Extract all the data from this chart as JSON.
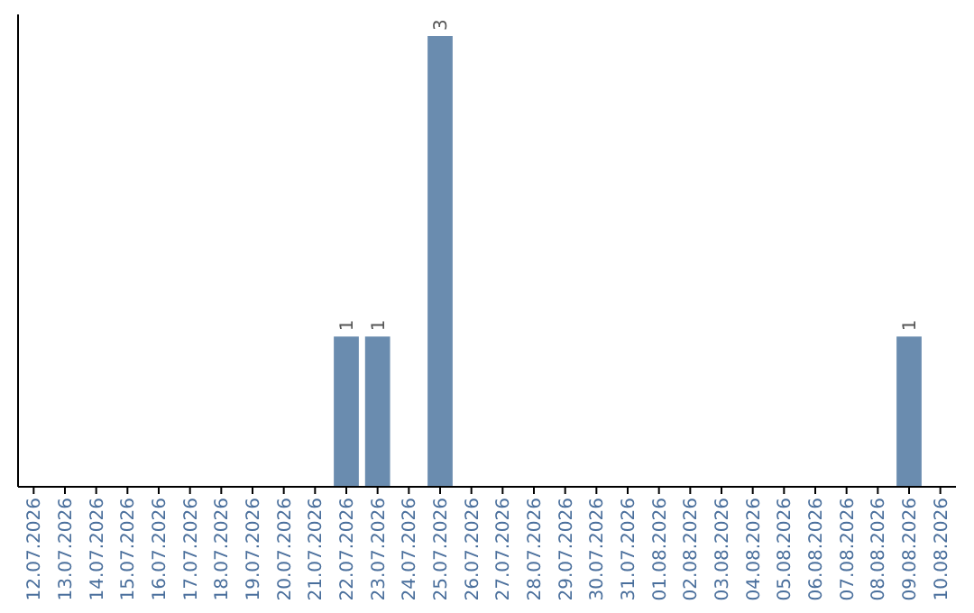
{
  "chart_data": {
    "type": "bar",
    "categories": [
      "12.07.2026",
      "13.07.2026",
      "14.07.2026",
      "15.07.2026",
      "16.07.2026",
      "17.07.2026",
      "18.07.2026",
      "19.07.2026",
      "20.07.2026",
      "21.07.2026",
      "22.07.2026",
      "23.07.2026",
      "24.07.2026",
      "25.07.2026",
      "26.07.2026",
      "27.07.2026",
      "28.07.2026",
      "29.07.2026",
      "30.07.2026",
      "31.07.2026",
      "01.08.2026",
      "02.08.2026",
      "03.08.2026",
      "04.08.2026",
      "05.08.2026",
      "06.08.2026",
      "07.08.2026",
      "08.08.2026",
      "09.08.2026",
      "10.08.2026"
    ],
    "values": [
      0,
      0,
      0,
      0,
      0,
      0,
      0,
      0,
      0,
      0,
      1,
      1,
      0,
      3,
      0,
      0,
      0,
      0,
      0,
      0,
      0,
      0,
      0,
      0,
      0,
      0,
      0,
      0,
      1,
      0
    ],
    "value_labels": [
      null,
      null,
      null,
      null,
      null,
      null,
      null,
      null,
      null,
      null,
      "1",
      "1",
      null,
      "3",
      null,
      null,
      null,
      null,
      null,
      null,
      null,
      null,
      null,
      null,
      null,
      null,
      null,
      null,
      "1",
      null
    ],
    "color": "#6a8caf"
  }
}
